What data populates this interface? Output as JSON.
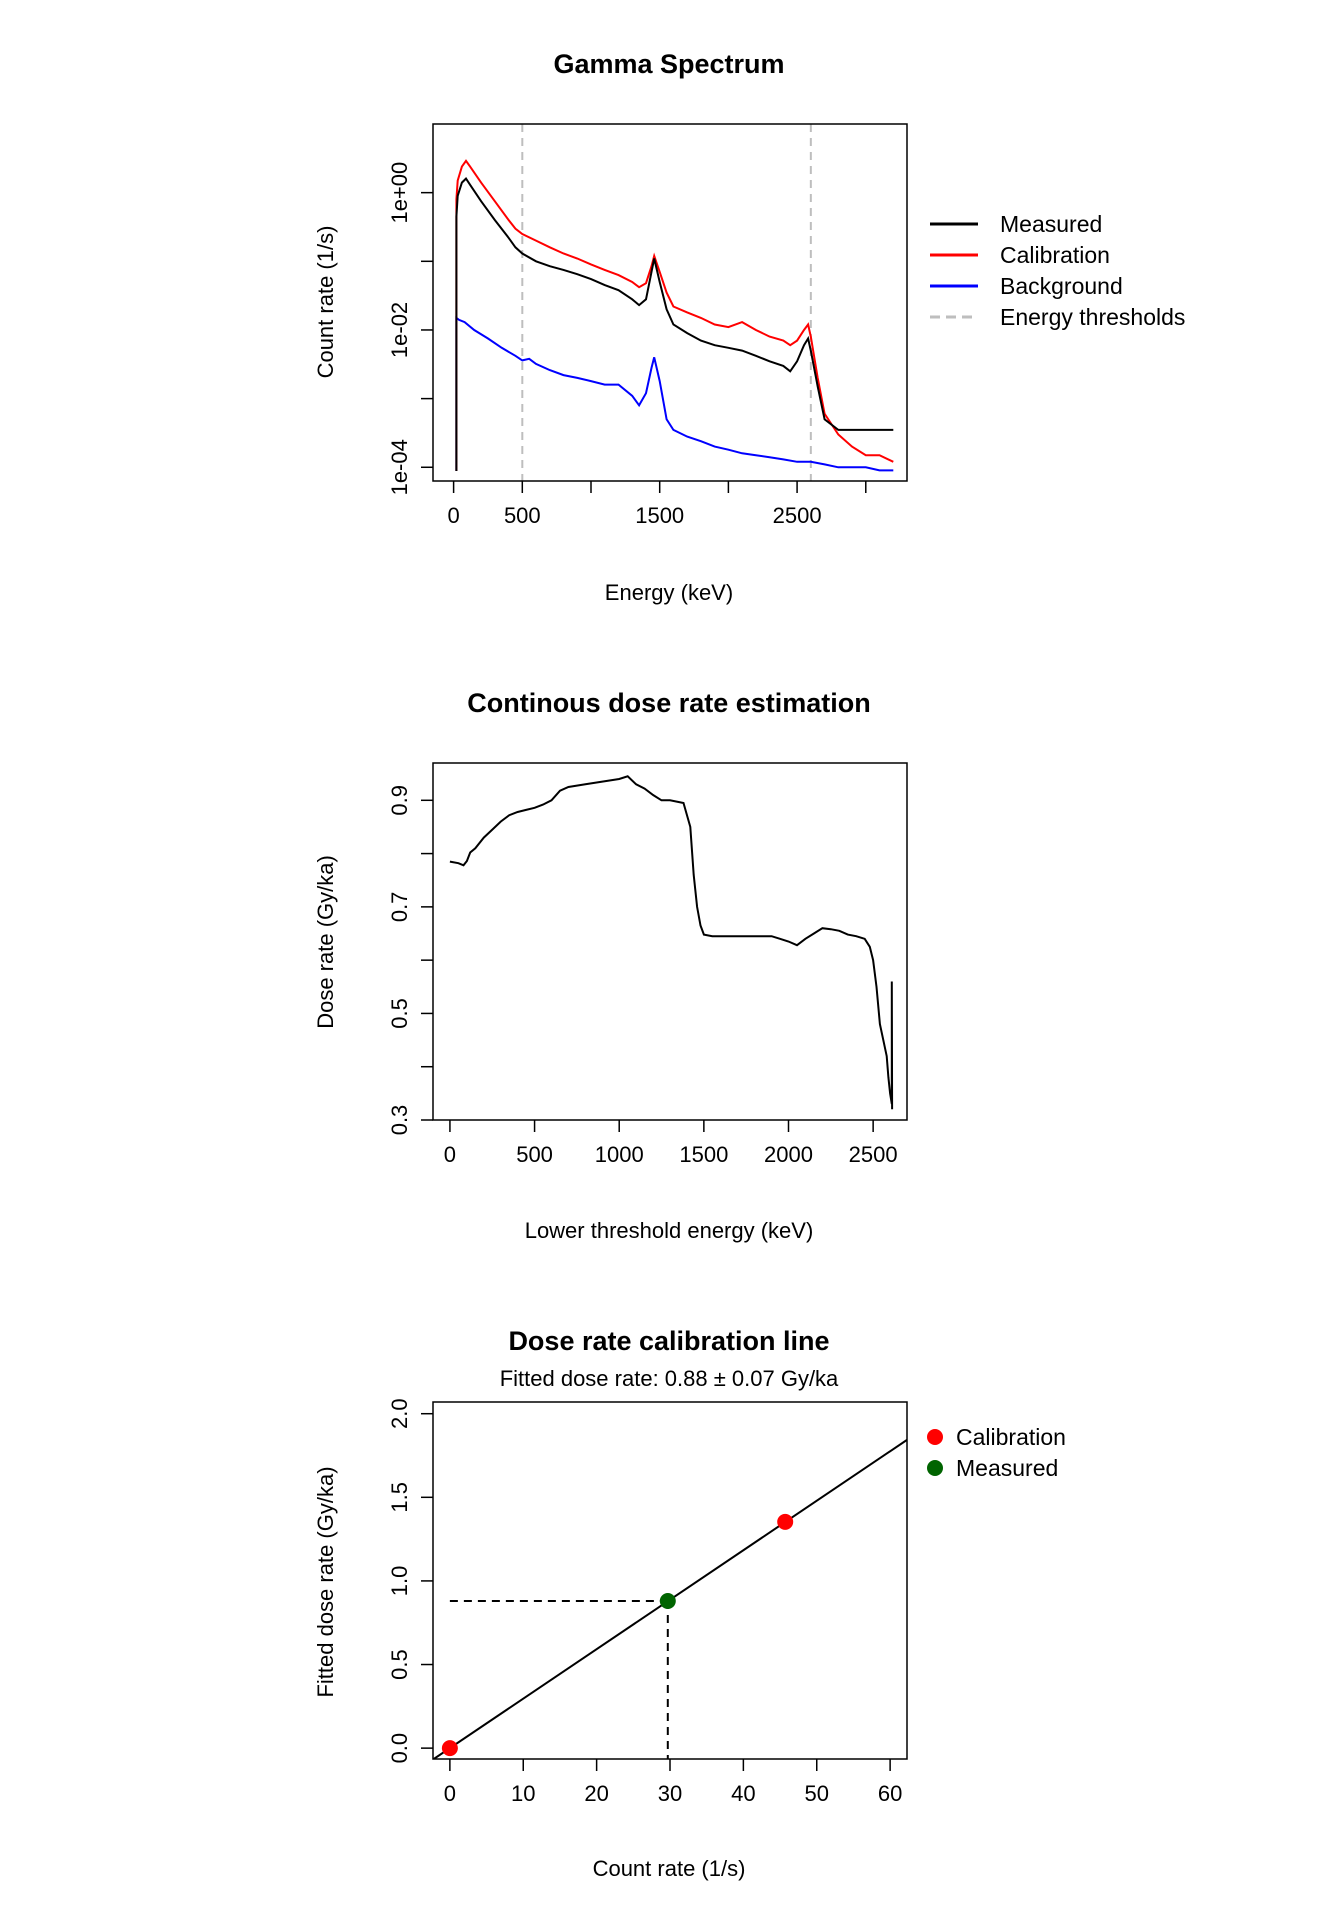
{
  "chart_data": [
    {
      "type": "line",
      "title": "Gamma Spectrum",
      "xlabel": "Energy (keV)",
      "ylabel": "Count rate (1/s)",
      "xlim": [
        -150,
        3300
      ],
      "ylim_log10": [
        -4.2,
        1.0
      ],
      "yscale": "log",
      "xticks": [
        0,
        500,
        1000,
        1500,
        2000,
        2500,
        3000
      ],
      "xtick_labels": [
        "0",
        "500",
        "",
        "1500",
        "",
        "2500",
        ""
      ],
      "yticks_log10": [
        -4,
        -3,
        -2,
        -1,
        0
      ],
      "ytick_labels": [
        "1e-04",
        "",
        "1e-02",
        "",
        "1e+00"
      ],
      "thresholds": [
        500,
        2600
      ],
      "legend_position": "right",
      "legend": [
        "Measured",
        "Calibration",
        "Background",
        "Energy thresholds"
      ],
      "colors": {
        "Measured": "#000000",
        "Calibration": "#ff0000",
        "Background": "#0000ff",
        "Energy thresholds": "#bebebe"
      },
      "series": [
        {
          "name": "Measured",
          "x": [
            20,
            30,
            60,
            90,
            120,
            200,
            300,
            400,
            450,
            500,
            600,
            700,
            800,
            900,
            1000,
            1100,
            1200,
            1300,
            1350,
            1400,
            1440,
            1460,
            1500,
            1550,
            1600,
            1700,
            1800,
            1900,
            2000,
            2100,
            2200,
            2300,
            2400,
            2450,
            2500,
            2550,
            2580,
            2600,
            2650,
            2700,
            2800,
            2900,
            3000,
            3100,
            3200
          ],
          "y": [
            0.45,
            0.9,
            1.4,
            1.6,
            1.3,
            0.75,
            0.4,
            0.22,
            0.16,
            0.13,
            0.1,
            0.085,
            0.075,
            0.065,
            0.055,
            0.045,
            0.038,
            0.028,
            0.023,
            0.028,
            0.07,
            0.11,
            0.05,
            0.02,
            0.012,
            0.009,
            0.007,
            0.006,
            0.0055,
            0.005,
            0.0042,
            0.0035,
            0.003,
            0.0025,
            0.0035,
            0.006,
            0.0075,
            0.005,
            0.0015,
            0.0005,
            0.00035,
            0.00035,
            0.00035,
            0.00035,
            0.00035
          ]
        },
        {
          "name": "Calibration",
          "x": [
            20,
            30,
            60,
            90,
            120,
            200,
            300,
            400,
            450,
            500,
            600,
            700,
            800,
            900,
            1000,
            1100,
            1200,
            1300,
            1350,
            1400,
            1440,
            1460,
            1500,
            1550,
            1600,
            1700,
            1800,
            1900,
            2000,
            2100,
            2200,
            2300,
            2400,
            2450,
            2500,
            2550,
            2580,
            2600,
            2650,
            2700,
            2800,
            2900,
            3000,
            3100,
            3200
          ],
          "y": [
            0.8,
            1.5,
            2.4,
            2.9,
            2.4,
            1.4,
            0.75,
            0.4,
            0.3,
            0.25,
            0.2,
            0.16,
            0.13,
            0.11,
            0.09,
            0.075,
            0.063,
            0.05,
            0.042,
            0.048,
            0.085,
            0.12,
            0.07,
            0.035,
            0.022,
            0.018,
            0.015,
            0.012,
            0.011,
            0.013,
            0.01,
            0.008,
            0.007,
            0.006,
            0.007,
            0.01,
            0.012,
            0.008,
            0.002,
            0.0006,
            0.0003,
            0.0002,
            0.00015,
            0.00015,
            0.00012
          ]
        },
        {
          "name": "Background",
          "x": [
            20,
            40,
            80,
            150,
            250,
            350,
            450,
            500,
            550,
            600,
            700,
            800,
            900,
            1000,
            1100,
            1200,
            1300,
            1350,
            1400,
            1440,
            1460,
            1500,
            1550,
            1600,
            1700,
            1800,
            1900,
            2000,
            2100,
            2200,
            2300,
            2400,
            2500,
            2600,
            2700,
            2800,
            2900,
            3000,
            3100,
            3200
          ],
          "y": [
            0.015,
            0.014,
            0.013,
            0.01,
            0.0075,
            0.0055,
            0.0042,
            0.0036,
            0.0038,
            0.0032,
            0.0026,
            0.0022,
            0.002,
            0.0018,
            0.0016,
            0.0016,
            0.0011,
            0.0008,
            0.0012,
            0.0028,
            0.004,
            0.0018,
            0.0005,
            0.00035,
            0.00028,
            0.00024,
            0.0002,
            0.00018,
            0.00016,
            0.00015,
            0.00014,
            0.00013,
            0.00012,
            0.00012,
            0.00011,
            0.0001,
            0.0001,
            0.0001,
            9e-05,
            9e-05
          ]
        }
      ]
    },
    {
      "type": "line",
      "title": "Continous dose rate estimation",
      "xlabel": "Lower threshold energy (keV)",
      "ylabel": "Dose rate (Gy/ka)",
      "xlim": [
        -100,
        2700
      ],
      "ylim": [
        0.3,
        0.97
      ],
      "xticks": [
        0,
        500,
        1000,
        1500,
        2000,
        2500
      ],
      "xtick_labels": [
        "0",
        "500",
        "1000",
        "1500",
        "2000",
        "2500"
      ],
      "yticks": [
        0.3,
        0.4,
        0.5,
        0.6,
        0.7,
        0.8,
        0.9
      ],
      "ytick_labels": [
        "0.3",
        "",
        "0.5",
        "",
        "0.7",
        "",
        "0.9"
      ],
      "series": [
        {
          "x": [
            0,
            50,
            80,
            100,
            120,
            150,
            200,
            250,
            300,
            350,
            400,
            450,
            500,
            550,
            600,
            650,
            700,
            800,
            900,
            1000,
            1050,
            1100,
            1150,
            1200,
            1250,
            1300,
            1380,
            1420,
            1440,
            1460,
            1480,
            1500,
            1550,
            1600,
            1700,
            1800,
            1900,
            1950,
            2000,
            2050,
            2100,
            2150,
            2200,
            2250,
            2300,
            2350,
            2400,
            2450,
            2480,
            2500,
            2520,
            2540,
            2560,
            2580,
            2590,
            2600,
            2610,
            2610,
            2612
          ],
          "y": [
            0.785,
            0.782,
            0.778,
            0.786,
            0.802,
            0.81,
            0.83,
            0.845,
            0.86,
            0.872,
            0.878,
            0.882,
            0.886,
            0.892,
            0.9,
            0.918,
            0.925,
            0.93,
            0.935,
            0.94,
            0.945,
            0.93,
            0.922,
            0.91,
            0.9,
            0.9,
            0.895,
            0.85,
            0.76,
            0.7,
            0.665,
            0.648,
            0.645,
            0.645,
            0.645,
            0.645,
            0.645,
            0.64,
            0.635,
            0.628,
            0.64,
            0.65,
            0.66,
            0.658,
            0.655,
            0.648,
            0.645,
            0.64,
            0.625,
            0.6,
            0.55,
            0.48,
            0.45,
            0.42,
            0.38,
            0.35,
            0.33,
            0.56,
            0.32
          ]
        }
      ]
    },
    {
      "type": "scatter",
      "title": "Dose rate calibration line",
      "subtitle": "Fitted dose rate: 0.88 ± 0.07 Gy/ka",
      "xlabel": "Count rate (1/s)",
      "ylabel": "Fitted dose rate (Gy/ka)",
      "xlim": [
        -2.3,
        62.3
      ],
      "ylim": [
        -0.065,
        2.07
      ],
      "xticks": [
        0,
        10,
        20,
        30,
        40,
        50,
        60
      ],
      "xtick_labels": [
        "0",
        "10",
        "20",
        "30",
        "40",
        "50",
        "60"
      ],
      "yticks": [
        0.0,
        0.5,
        1.0,
        1.5,
        2.0
      ],
      "ytick_labels": [
        "0.0",
        "0.5",
        "1.0",
        "1.5",
        "2.0"
      ],
      "legend_position": "right",
      "legend": [
        "Calibration",
        "Measured"
      ],
      "fit_line": {
        "intercept": 0,
        "slope": 0.02959
      },
      "series": [
        {
          "name": "Calibration",
          "color": "#ff0000",
          "x": [
            0,
            45.7
          ],
          "y": [
            0.0,
            1.353
          ]
        },
        {
          "name": "Measured",
          "color": "#006400",
          "x": [
            29.7
          ],
          "y": [
            0.88
          ]
        }
      ]
    }
  ]
}
